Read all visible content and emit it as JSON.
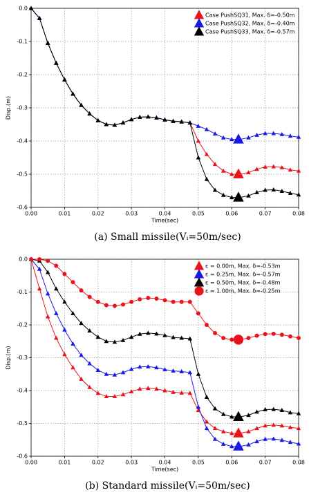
{
  "chart_data": [
    {
      "type": "line",
      "xlabel": "Time(sec)",
      "ylabel": "Disp.(m)",
      "caption": "(a)  Small missile(Vᵢ=50m/sec)",
      "x": [
        0,
        0.0025,
        0.005,
        0.0075,
        0.01,
        0.0125,
        0.015,
        0.0175,
        0.02,
        0.0225,
        0.025,
        0.0275,
        0.03,
        0.0325,
        0.035,
        0.0375,
        0.04,
        0.0425,
        0.045,
        0.0475,
        0.05,
        0.0525,
        0.055,
        0.0575,
        0.06,
        0.0625,
        0.065,
        0.0675,
        0.07,
        0.0725,
        0.075,
        0.0775,
        0.08
      ],
      "xlim": [
        0,
        0.08
      ],
      "ylim": [
        -0.6,
        0
      ],
      "xticks": [
        {
          "value": 0,
          "label": "0.00"
        },
        0.01,
        0.02,
        0.03,
        0.04,
        0.05,
        0.06,
        0.07,
        0.08
      ],
      "yticks": [
        {
          "value": 0,
          "label": "0.0"
        },
        -0.1,
        -0.2,
        -0.3,
        -0.4,
        -0.5,
        -0.6
      ],
      "grid": true,
      "legend": "upper right",
      "max_x": 0.062,
      "series": [
        {
          "name": "Case PushSQ31, Max. δ=-0.50m",
          "color": "#e8141c",
          "marker": "triangle",
          "max_value": -0.5,
          "values": [
            0,
            -0.03,
            -0.105,
            -0.165,
            -0.215,
            -0.258,
            -0.292,
            -0.318,
            -0.338,
            -0.35,
            -0.352,
            -0.345,
            -0.335,
            -0.328,
            -0.327,
            -0.33,
            -0.336,
            -0.34,
            -0.342,
            -0.345,
            -0.4,
            -0.44,
            -0.47,
            -0.49,
            -0.5,
            -0.5,
            -0.495,
            -0.485,
            -0.478,
            -0.477,
            -0.48,
            -0.487,
            -0.49
          ]
        },
        {
          "name": "Case PushSQ32, Max. δ=-0.40m",
          "color": "#1a1ae6",
          "marker": "triangle",
          "max_value": -0.395,
          "values": [
            0,
            -0.03,
            -0.105,
            -0.165,
            -0.215,
            -0.258,
            -0.292,
            -0.318,
            -0.338,
            -0.35,
            -0.352,
            -0.345,
            -0.335,
            -0.328,
            -0.327,
            -0.33,
            -0.336,
            -0.34,
            -0.342,
            -0.345,
            -0.355,
            -0.365,
            -0.378,
            -0.39,
            -0.395,
            -0.395,
            -0.39,
            -0.382,
            -0.377,
            -0.377,
            -0.38,
            -0.385,
            -0.388
          ]
        },
        {
          "name": "Case PushSQ33, Max. δ=-0.57m",
          "color": "#000000",
          "marker": "triangle",
          "max_value": -0.57,
          "values": [
            0,
            -0.03,
            -0.105,
            -0.165,
            -0.215,
            -0.258,
            -0.292,
            -0.318,
            -0.338,
            -0.35,
            -0.352,
            -0.345,
            -0.335,
            -0.328,
            -0.327,
            -0.33,
            -0.336,
            -0.34,
            -0.342,
            -0.345,
            -0.45,
            -0.515,
            -0.548,
            -0.563,
            -0.57,
            -0.57,
            -0.565,
            -0.555,
            -0.548,
            -0.547,
            -0.551,
            -0.557,
            -0.562
          ]
        }
      ]
    },
    {
      "type": "line",
      "xlabel": "Time(sec)",
      "ylabel": "Disp.(m)",
      "caption": "(b)  Standard missile(Vᵢ=50m/sec)",
      "x": [
        0,
        0.0025,
        0.005,
        0.0075,
        0.01,
        0.0125,
        0.015,
        0.0175,
        0.02,
        0.0225,
        0.025,
        0.0275,
        0.03,
        0.0325,
        0.035,
        0.0375,
        0.04,
        0.0425,
        0.045,
        0.0475,
        0.05,
        0.0525,
        0.055,
        0.0575,
        0.06,
        0.0625,
        0.065,
        0.0675,
        0.07,
        0.0725,
        0.075,
        0.0775,
        0.08
      ],
      "xlim": [
        0,
        0.08
      ],
      "ylim": [
        -0.6,
        0
      ],
      "xticks": [
        {
          "value": 0,
          "label": "0.00"
        },
        0.01,
        0.02,
        0.03,
        0.04,
        0.05,
        0.06,
        0.07,
        0.08
      ],
      "yticks": [
        {
          "value": 0,
          "label": "0.0"
        },
        -0.1,
        -0.2,
        -0.3,
        -0.4,
        -0.5,
        -0.6
      ],
      "grid": true,
      "legend": "upper right",
      "max_x": 0.062,
      "series": [
        {
          "name": "ε = 0.00m, Max. δ=-0.53m",
          "color": "#e8141c",
          "marker": "triangle",
          "max_value": -0.53,
          "values": [
            0,
            -0.09,
            -0.175,
            -0.24,
            -0.29,
            -0.33,
            -0.365,
            -0.39,
            -0.408,
            -0.418,
            -0.418,
            -0.412,
            -0.403,
            -0.395,
            -0.393,
            -0.395,
            -0.4,
            -0.405,
            -0.407,
            -0.408,
            -0.46,
            -0.495,
            -0.515,
            -0.525,
            -0.53,
            -0.53,
            -0.525,
            -0.515,
            -0.507,
            -0.505,
            -0.507,
            -0.512,
            -0.515
          ]
        },
        {
          "name": "ε = 0.25m, Max. δ=-0.57m",
          "color": "#1a1ae6",
          "marker": "triangle",
          "max_value": -0.57,
          "values": [
            0,
            -0.03,
            -0.105,
            -0.165,
            -0.215,
            -0.258,
            -0.292,
            -0.318,
            -0.338,
            -0.35,
            -0.352,
            -0.345,
            -0.335,
            -0.328,
            -0.327,
            -0.33,
            -0.336,
            -0.34,
            -0.342,
            -0.345,
            -0.45,
            -0.515,
            -0.548,
            -0.563,
            -0.57,
            -0.57,
            -0.565,
            -0.555,
            -0.548,
            -0.547,
            -0.551,
            -0.557,
            -0.562
          ]
        },
        {
          "name": "ε = 0.50m, Max. δ=-0.48m",
          "color": "#000000",
          "marker": "triangle",
          "max_value": -0.48,
          "values": [
            0,
            -0.005,
            -0.04,
            -0.09,
            -0.13,
            -0.165,
            -0.195,
            -0.218,
            -0.237,
            -0.25,
            -0.252,
            -0.247,
            -0.237,
            -0.228,
            -0.225,
            -0.227,
            -0.232,
            -0.238,
            -0.24,
            -0.242,
            -0.35,
            -0.42,
            -0.455,
            -0.472,
            -0.48,
            -0.48,
            -0.475,
            -0.465,
            -0.458,
            -0.457,
            -0.46,
            -0.467,
            -0.47
          ]
        },
        {
          "name": "ε = 1.00m, Max. δ=-0.25m",
          "color": "#e8141c",
          "marker": "circle",
          "max_value": -0.245,
          "values": [
            0,
            0,
            -0.005,
            -0.02,
            -0.045,
            -0.07,
            -0.095,
            -0.115,
            -0.13,
            -0.14,
            -0.142,
            -0.138,
            -0.13,
            -0.122,
            -0.118,
            -0.12,
            -0.125,
            -0.13,
            -0.13,
            -0.13,
            -0.165,
            -0.2,
            -0.225,
            -0.24,
            -0.245,
            -0.245,
            -0.24,
            -0.233,
            -0.228,
            -0.227,
            -0.23,
            -0.235,
            -0.24
          ]
        }
      ]
    }
  ]
}
